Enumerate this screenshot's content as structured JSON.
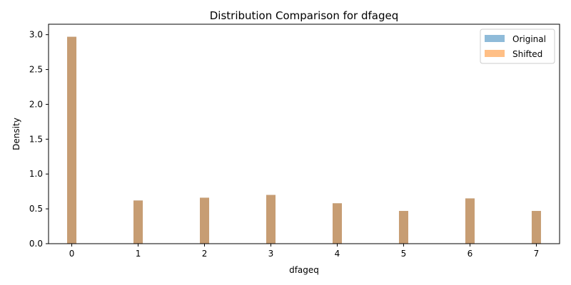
{
  "chart_data": {
    "type": "bar",
    "title": "Distribution Comparison for dfageq",
    "xlabel": "dfageq",
    "ylabel": "Density",
    "xlim": [
      -0.35,
      7.35
    ],
    "ylim": [
      0,
      3.15
    ],
    "xticks": [
      "0",
      "1",
      "2",
      "3",
      "4",
      "5",
      "6",
      "7"
    ],
    "yticks": [
      "0.0",
      "0.5",
      "1.0",
      "1.5",
      "2.0",
      "2.5",
      "3.0"
    ],
    "x": [
      0,
      1,
      2,
      3,
      4,
      5,
      6,
      7
    ],
    "series": [
      {
        "name": "Original",
        "color": "#1f77b4",
        "opacity": 0.5,
        "values": [
          2.97,
          0.62,
          0.66,
          0.7,
          0.58,
          0.47,
          0.65,
          0.47
        ]
      },
      {
        "name": "Shifted",
        "color": "#ff7f0e",
        "opacity": 0.5,
        "values": [
          2.97,
          0.62,
          0.66,
          0.7,
          0.58,
          0.47,
          0.65,
          0.47
        ]
      }
    ],
    "grid": false,
    "legend_position": "top-right"
  }
}
